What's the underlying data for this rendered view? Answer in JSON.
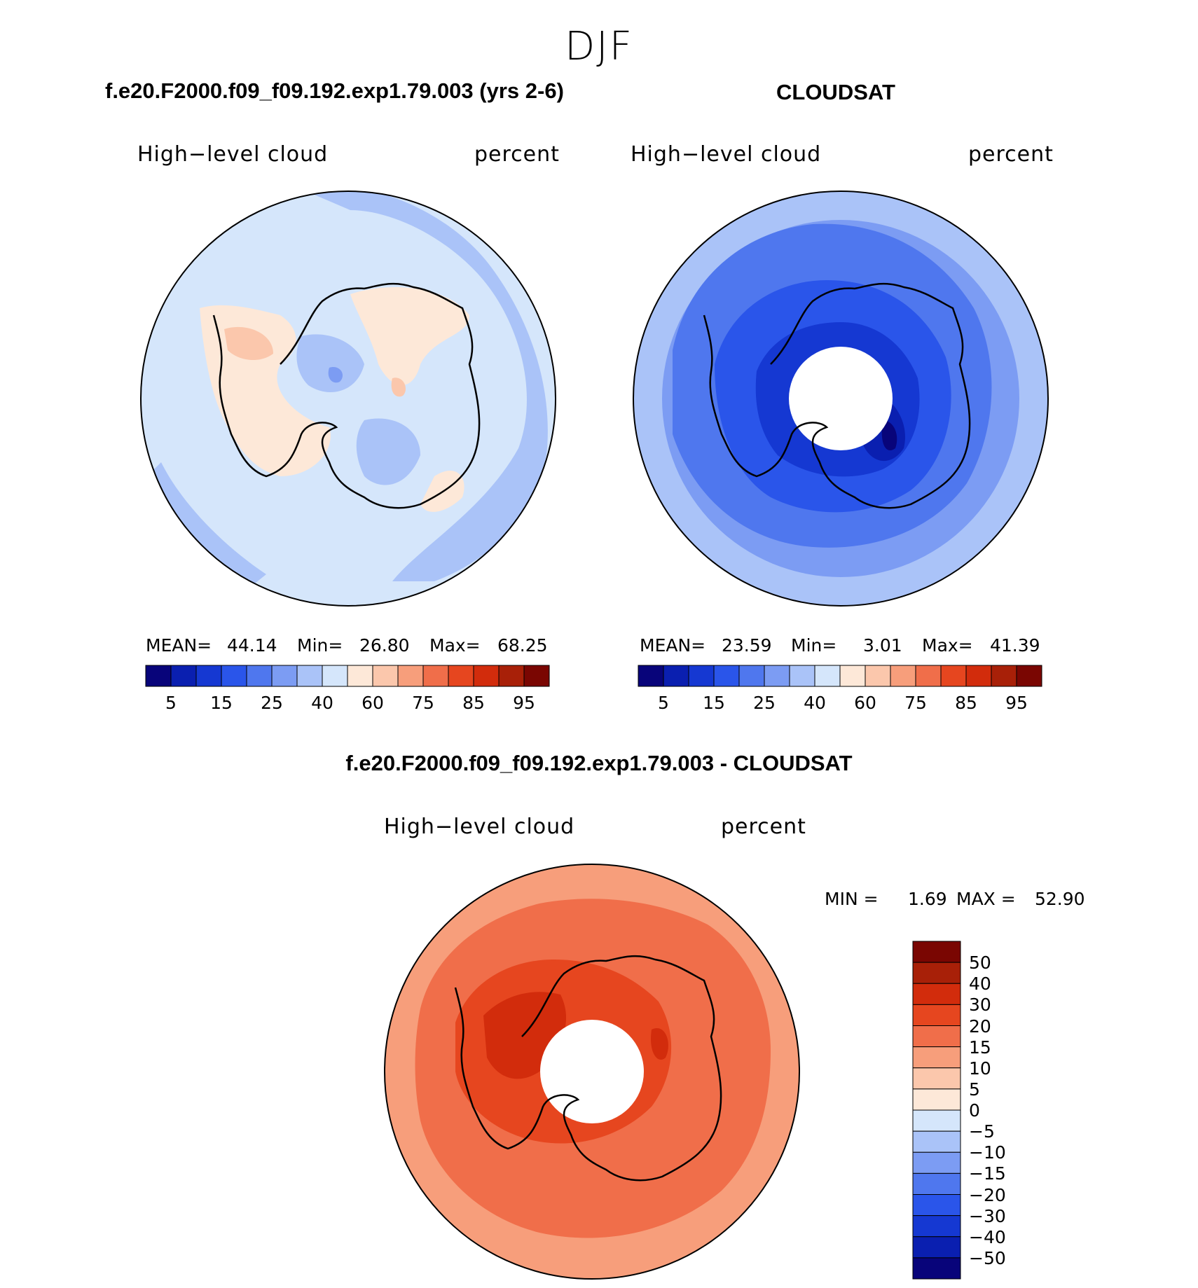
{
  "figure": {
    "season": "DJF",
    "left_panel": {
      "title": "f.e20.F2000.f09_f09.192.exp1.79.003 (yrs 2-6)",
      "variable": "High−level cloud",
      "units": "percent",
      "stats": {
        "mean_label": "MEAN=",
        "mean": "44.14",
        "min_label": "Min=",
        "min": "26.80",
        "max_label": "Max=",
        "max": "68.25"
      }
    },
    "right_panel": {
      "title": "CLOUDSAT",
      "variable": "High−level cloud",
      "units": "percent",
      "stats": {
        "mean_label": "MEAN=",
        "mean": "23.59",
        "min_label": "Min=",
        "min": "3.01",
        "max_label": "Max=",
        "max": "41.39"
      }
    },
    "diff_panel": {
      "title": "f.e20.F2000.f09_f09.192.exp1.79.003 - CLOUDSAT",
      "variable": "High−level cloud",
      "units": "percent",
      "stats": {
        "min_label": "MIN =",
        "min": "1.69",
        "max_label": "MAX =",
        "max": "52.90"
      }
    }
  },
  "colorbars": {
    "abs": {
      "colors": [
        "#08047a",
        "#0a1fb0",
        "#1538d2",
        "#2a55ea",
        "#4f77ee",
        "#7c9cf3",
        "#aac3f8",
        "#d5e6fb",
        "#fde8d8",
        "#fbc7ac",
        "#f79e7b",
        "#f06e4a",
        "#e6461f",
        "#d22c0c",
        "#a82008",
        "#7a0602"
      ],
      "tick_labels": [
        "5",
        "15",
        "25",
        "40",
        "60",
        "75",
        "85",
        "95"
      ]
    },
    "diff": {
      "colors_top_to_bottom": [
        "#7a0602",
        "#a82008",
        "#d22c0c",
        "#e6461f",
        "#f06e4a",
        "#f79e7b",
        "#fbc7ac",
        "#fde8d8",
        "#d5e6fb",
        "#aac3f8",
        "#7c9cf3",
        "#4f77ee",
        "#2a55ea",
        "#1538d2",
        "#0a1fb0",
        "#08047a"
      ],
      "tick_labels": [
        "50",
        "40",
        "30",
        "20",
        "15",
        "10",
        "5",
        "0",
        "−5",
        "−10",
        "−15",
        "−20",
        "−30",
        "−40",
        "−50"
      ]
    }
  },
  "map_fields": {
    "left": {
      "background": "#d5e6fb",
      "regions": [
        "#aac3f8",
        "#fde8d8",
        "#fbc7ac",
        "#7c9cf3"
      ]
    },
    "right": {
      "background": "#aac3f8",
      "regions": [
        "#7c9cf3",
        "#4f77ee",
        "#2a55ea",
        "#1538d2",
        "#0a1fb0",
        "#08047a"
      ],
      "missing_pole": true
    },
    "diff": {
      "background": "#f79e7b",
      "regions": [
        "#fbc7ac",
        "#f06e4a",
        "#e6461f",
        "#d22c0c",
        "#a82008"
      ],
      "missing_pole": true
    }
  }
}
